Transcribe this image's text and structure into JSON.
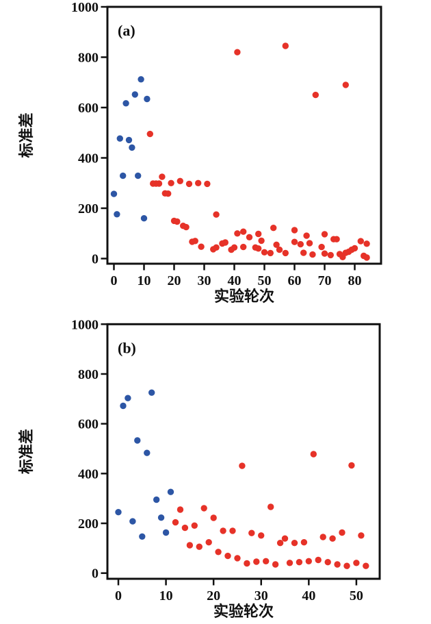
{
  "page": {
    "background": "#ffffff"
  },
  "colors": {
    "axis": "#111111",
    "blue": "#2d56a5",
    "red": "#e63228"
  },
  "chart_data": [
    {
      "id": "a",
      "type": "scatter",
      "panel_label": "(a)",
      "title": "",
      "xlabel": "实验轮次",
      "ylabel": "标准差",
      "grid": false,
      "legend": "none",
      "xlim": [
        -2.16,
        88.75
      ],
      "ylim": [
        -20.4,
        1000
      ],
      "xticks": [
        0,
        10,
        20,
        30,
        40,
        50,
        60,
        70,
        80
      ],
      "yticks": [
        0,
        200,
        400,
        600,
        800,
        1000
      ],
      "series": [
        {
          "name": "blue-points",
          "color": "#2d56a5",
          "points": [
            [
              0,
              257
            ],
            [
              1,
              176
            ],
            [
              2,
              477
            ],
            [
              3,
              329
            ],
            [
              4,
              617
            ],
            [
              5,
              471
            ],
            [
              6,
              441
            ],
            [
              7,
              652
            ],
            [
              8,
              329
            ],
            [
              9,
              712
            ],
            [
              10,
              160
            ],
            [
              11,
              634
            ]
          ]
        },
        {
          "name": "red-points",
          "color": "#e63228",
          "points": [
            [
              12,
              495
            ],
            [
              13,
              298
            ],
            [
              14,
              298
            ],
            [
              15,
              298
            ],
            [
              16,
              325
            ],
            [
              17,
              259
            ],
            [
              18,
              258
            ],
            [
              19,
              300
            ],
            [
              20,
              150
            ],
            [
              21,
              147
            ],
            [
              22,
              308
            ],
            [
              23,
              130
            ],
            [
              24,
              125
            ],
            [
              25,
              297
            ],
            [
              26,
              67
            ],
            [
              27,
              70
            ],
            [
              28,
              300
            ],
            [
              29,
              47
            ],
            [
              31,
              297
            ],
            [
              33,
              37
            ],
            [
              34,
              44
            ],
            [
              34,
              175
            ],
            [
              36,
              60
            ],
            [
              37,
              64
            ],
            [
              39,
              35
            ],
            [
              40,
              44
            ],
            [
              41,
              100
            ],
            [
              41,
              820
            ],
            [
              43,
              107
            ],
            [
              43,
              46
            ],
            [
              45,
              85
            ],
            [
              47,
              44
            ],
            [
              48,
              40
            ],
            [
              48,
              98
            ],
            [
              49,
              71
            ],
            [
              50,
              25
            ],
            [
              52,
              22
            ],
            [
              53,
              122
            ],
            [
              54,
              55
            ],
            [
              55,
              35
            ],
            [
              57,
              22
            ],
            [
              57,
              845
            ],
            [
              60,
              113
            ],
            [
              60,
              66
            ],
            [
              62,
              57
            ],
            [
              63,
              23
            ],
            [
              64,
              91
            ],
            [
              65,
              61
            ],
            [
              66,
              16
            ],
            [
              67,
              650
            ],
            [
              69,
              46
            ],
            [
              70,
              97
            ],
            [
              70,
              20
            ],
            [
              72,
              14
            ],
            [
              73,
              77
            ],
            [
              74,
              77
            ],
            [
              75,
              18
            ],
            [
              76,
              6
            ],
            [
              77,
              23
            ],
            [
              77,
              690
            ],
            [
              78,
              27
            ],
            [
              79,
              35
            ],
            [
              80,
              41
            ],
            [
              82,
              69
            ],
            [
              83,
              11
            ],
            [
              84,
              59
            ],
            [
              84,
              4
            ]
          ]
        }
      ]
    },
    {
      "id": "b",
      "type": "scatter",
      "panel_label": "(b)",
      "title": "",
      "xlabel": "实验轮次",
      "ylabel": "标准差",
      "grid": false,
      "legend": "none",
      "xlim": [
        -2.3,
        54.9
      ],
      "ylim": [
        -22.8,
        1000
      ],
      "xticks": [
        0,
        10,
        20,
        30,
        40,
        50
      ],
      "yticks": [
        0,
        200,
        400,
        600,
        800,
        1000
      ],
      "series": [
        {
          "name": "blue-points",
          "color": "#2d56a5",
          "points": [
            [
              0,
              245
            ],
            [
              1,
              672
            ],
            [
              2,
              703
            ],
            [
              3,
              208
            ],
            [
              4,
              533
            ],
            [
              5,
              147
            ],
            [
              6,
              483
            ],
            [
              7,
              725
            ],
            [
              8,
              295
            ],
            [
              9,
              223
            ],
            [
              10,
              163
            ],
            [
              11,
              326
            ]
          ]
        },
        {
          "name": "red-points",
          "color": "#e63228",
          "points": [
            [
              12,
              204
            ],
            [
              13,
              255
            ],
            [
              14,
              182
            ],
            [
              15,
              112
            ],
            [
              16,
              191
            ],
            [
              17,
              106
            ],
            [
              18,
              261
            ],
            [
              19,
              124
            ],
            [
              20,
              222
            ],
            [
              21,
              85
            ],
            [
              22,
              170
            ],
            [
              23,
              69
            ],
            [
              24,
              170
            ],
            [
              25,
              60
            ],
            [
              26,
              431
            ],
            [
              27,
              39
            ],
            [
              28,
              161
            ],
            [
              29,
              46
            ],
            [
              30,
              151
            ],
            [
              31,
              48
            ],
            [
              32,
              266
            ],
            [
              33,
              35
            ],
            [
              34,
              121
            ],
            [
              35,
              139
            ],
            [
              36,
              41
            ],
            [
              37,
              121
            ],
            [
              38,
              44
            ],
            [
              39,
              124
            ],
            [
              40,
              48
            ],
            [
              41,
              478
            ],
            [
              42,
              53
            ],
            [
              43,
              145
            ],
            [
              44,
              44
            ],
            [
              45,
              139
            ],
            [
              46,
              35
            ],
            [
              47,
              163
            ],
            [
              48,
              29
            ],
            [
              49,
              433
            ],
            [
              50,
              41
            ],
            [
              51,
              151
            ],
            [
              52,
              29
            ]
          ]
        }
      ]
    }
  ]
}
